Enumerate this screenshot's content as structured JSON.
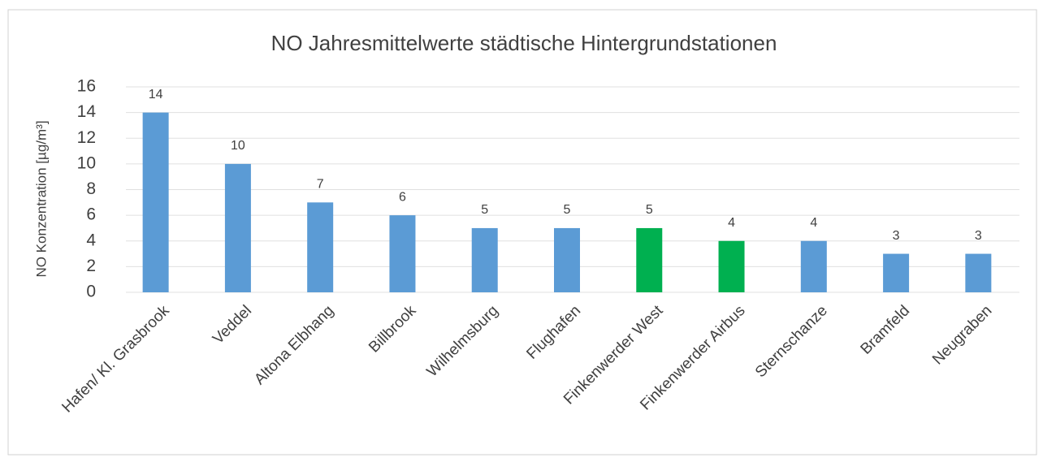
{
  "chart_data": {
    "type": "bar",
    "title": "NO Jahresmittelwerte städtische Hintergrundstationen",
    "y_label": "NO Konzentration [µg/m³]",
    "categories": [
      "Hafen/ Kl. Grasbrook",
      "Veddel",
      "Altona Elbhang",
      "Billbrook",
      "Wilhelmsburg",
      "Flughafen",
      "Finkenwerder West",
      "Finkenwerder Airbus",
      "Sternschanze",
      "Bramfeld",
      "Neugraben"
    ],
    "values": [
      14,
      10,
      7,
      6,
      5,
      5,
      5,
      4,
      4,
      3,
      3
    ],
    "colors": [
      "#5b9bd5",
      "#5b9bd5",
      "#5b9bd5",
      "#5b9bd5",
      "#5b9bd5",
      "#5b9bd5",
      "#00b050",
      "#00b050",
      "#5b9bd5",
      "#5b9bd5",
      "#5b9bd5"
    ],
    "ylim": [
      0,
      16
    ],
    "yticks": [
      0,
      2,
      4,
      6,
      8,
      10,
      12,
      14,
      16
    ],
    "grid": true
  }
}
